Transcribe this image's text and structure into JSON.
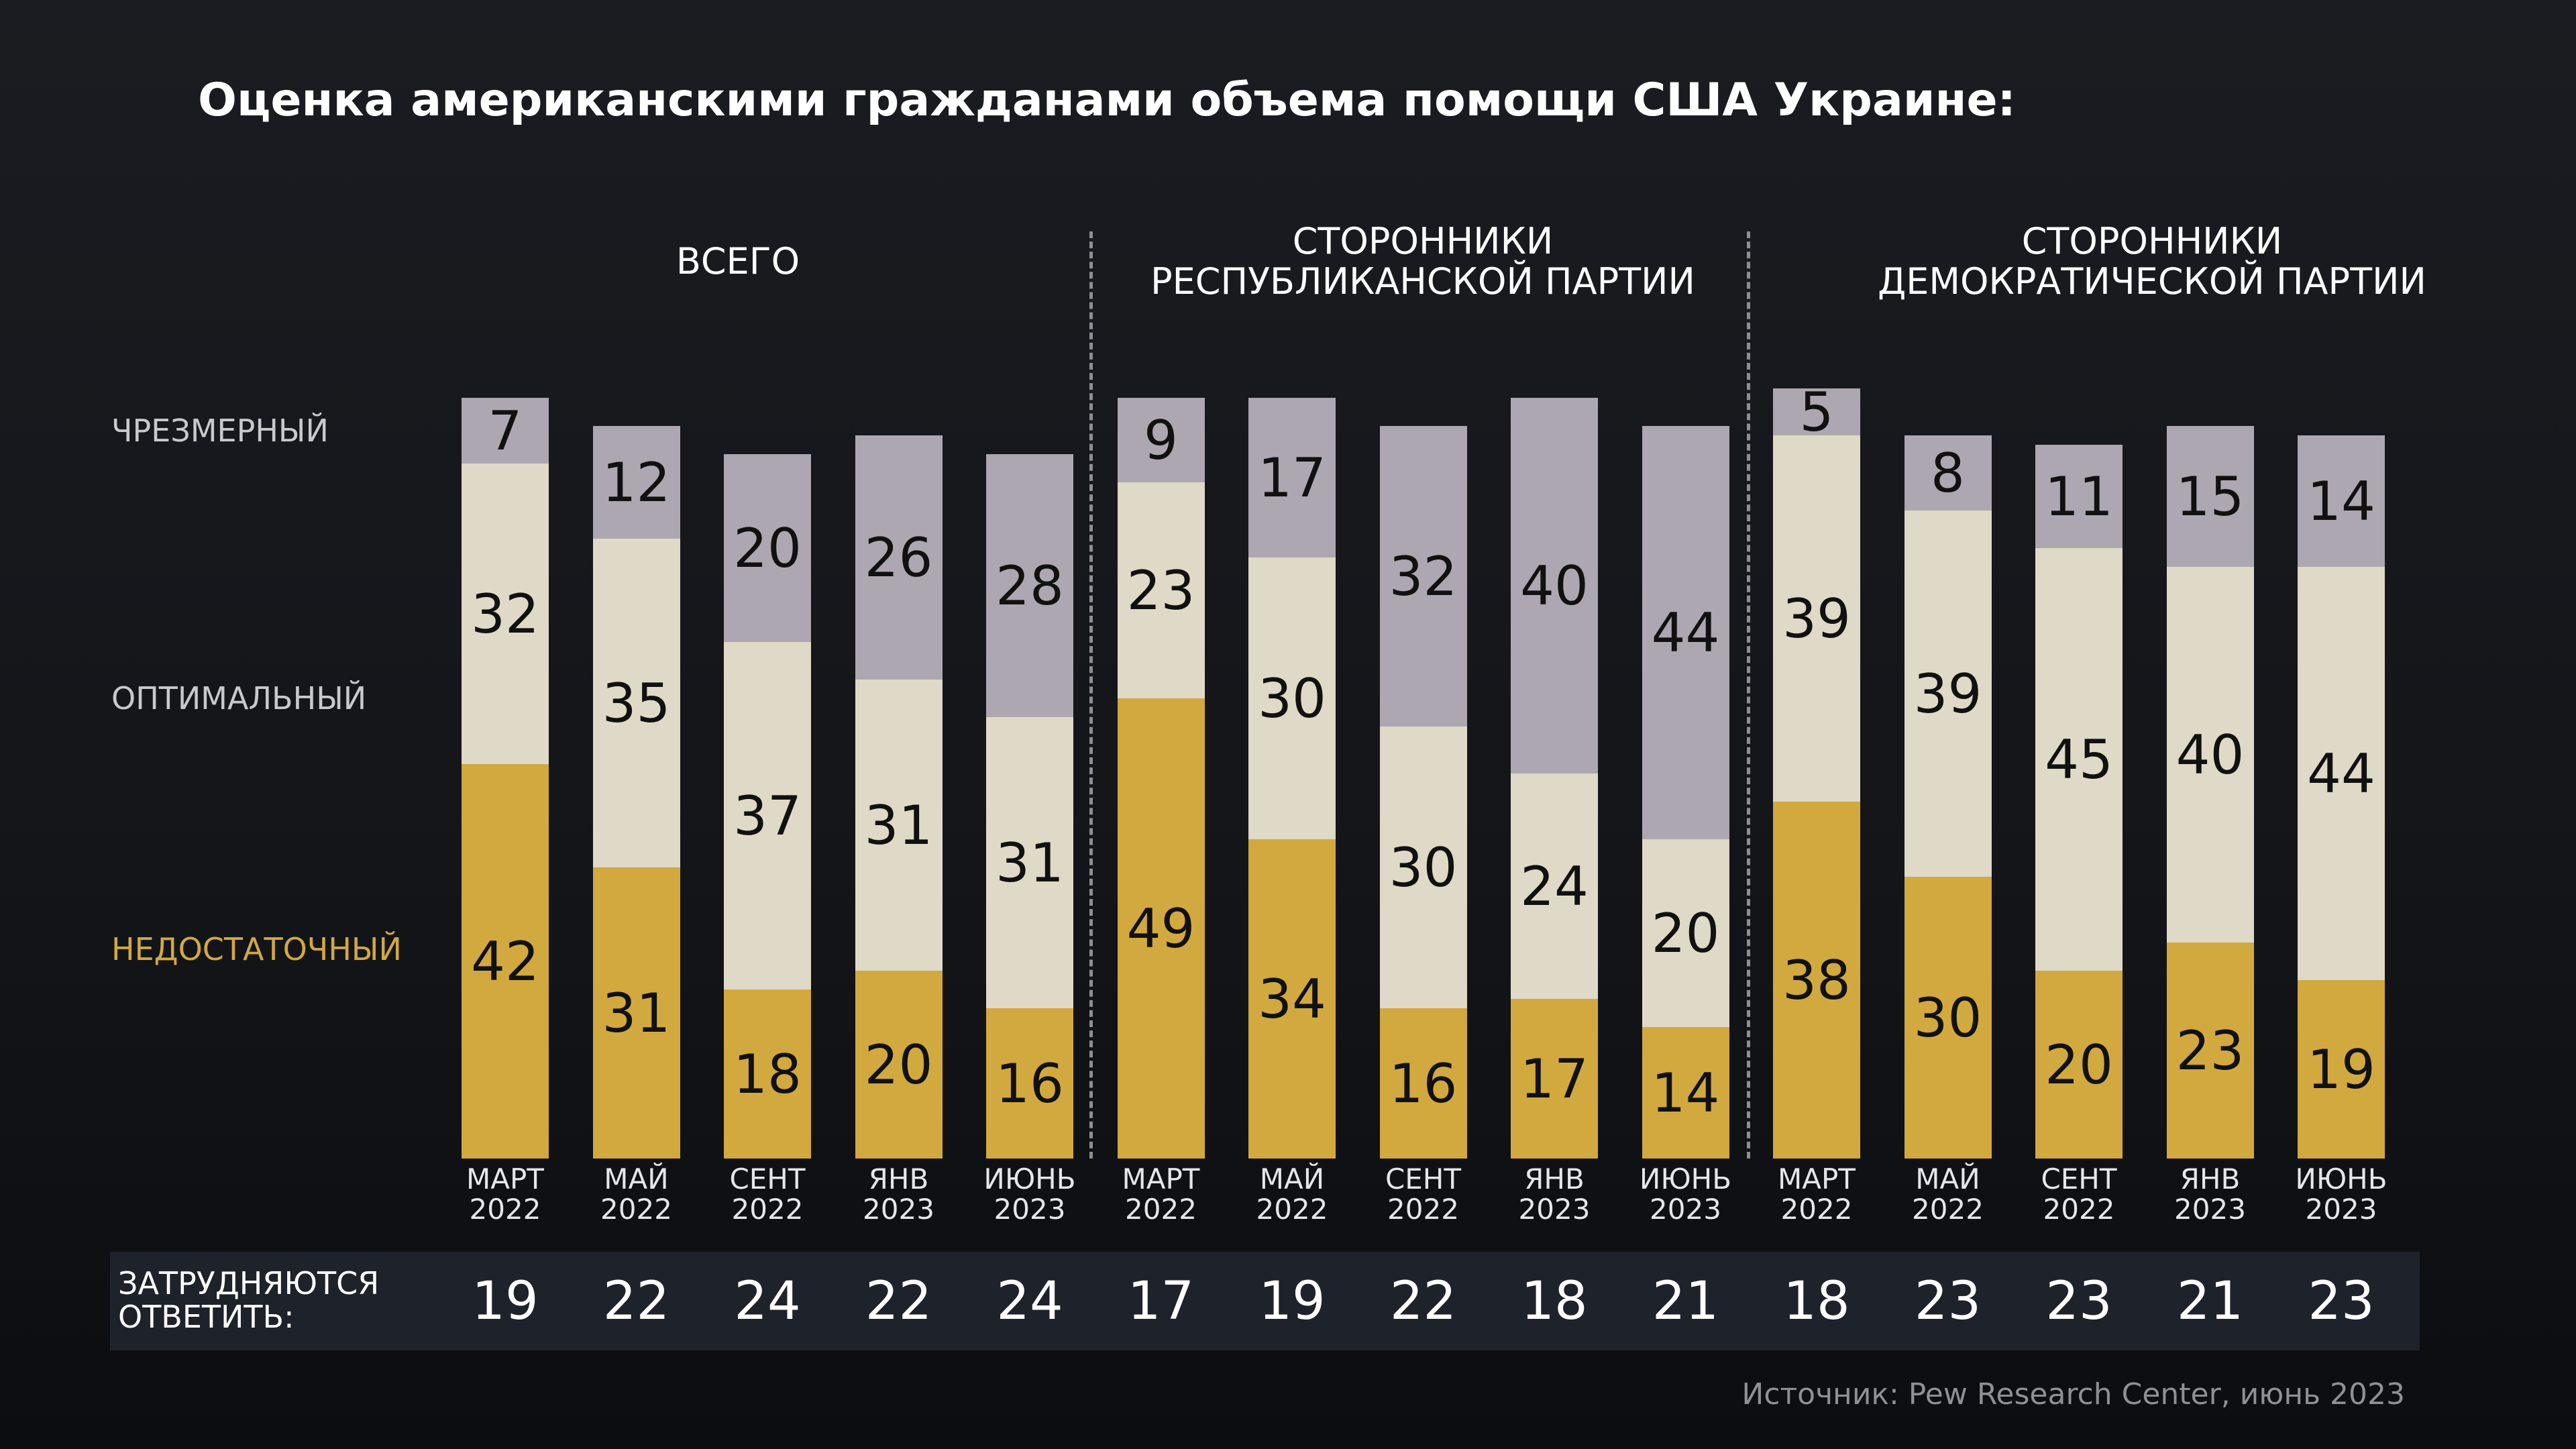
{
  "chart_data": {
    "type": "bar",
    "stacked": true,
    "title": "Оценка американскими гражданами объема помощи США Украине:",
    "groups": [
      {
        "label": [
          "ВСЕГО"
        ],
        "periods": [
          [
            "МАРТ",
            "2022"
          ],
          [
            "МАЙ",
            "2022"
          ],
          [
            "СЕНТ",
            "2022"
          ],
          [
            "ЯНВ",
            "2023"
          ],
          [
            "ИЮНЬ",
            "2023"
          ]
        ],
        "excessive": [
          7,
          12,
          20,
          26,
          28
        ],
        "optimal": [
          32,
          35,
          37,
          31,
          31
        ],
        "insufficient": [
          42,
          31,
          18,
          20,
          16
        ],
        "dont_know": [
          19,
          22,
          24,
          22,
          24
        ]
      },
      {
        "label": [
          "СТОРОННИКИ",
          "РЕСПУБЛИКАНСКОЙ ПАРТИИ"
        ],
        "periods": [
          [
            "МАРТ",
            "2022"
          ],
          [
            "МАЙ",
            "2022"
          ],
          [
            "СЕНТ",
            "2022"
          ],
          [
            "ЯНВ",
            "2023"
          ],
          [
            "ИЮНЬ",
            "2023"
          ]
        ],
        "excessive": [
          9,
          17,
          32,
          40,
          44
        ],
        "optimal": [
          23,
          30,
          30,
          24,
          20
        ],
        "insufficient": [
          49,
          34,
          16,
          17,
          14
        ],
        "dont_know": [
          17,
          19,
          22,
          18,
          21
        ]
      },
      {
        "label": [
          "СТОРОННИКИ",
          "ДЕМОКРАТИЧЕСКОЙ ПАРТИИ"
        ],
        "periods": [
          [
            "МАРТ",
            "2022"
          ],
          [
            "МАЙ",
            "2022"
          ],
          [
            "СЕНТ",
            "2022"
          ],
          [
            "ЯНВ",
            "2023"
          ],
          [
            "ИЮНЬ",
            "2023"
          ]
        ],
        "excessive": [
          5,
          8,
          11,
          15,
          14
        ],
        "optimal": [
          39,
          39,
          45,
          40,
          44
        ],
        "insufficient": [
          38,
          30,
          20,
          23,
          19
        ],
        "dont_know": [
          18,
          23,
          23,
          21,
          23
        ]
      }
    ],
    "series": [
      {
        "name": "ЧРЕЗМЕРНЫЙ",
        "key": "excessive",
        "color": "#aca7b0"
      },
      {
        "name": "ОПТИМАЛЬНЫЙ",
        "key": "optimal",
        "color": "#dfd9c7"
      },
      {
        "name": "НЕДОСТАТОЧНЫЙ",
        "key": "insufficient",
        "color": "#d2a93f"
      }
    ],
    "dont_know_label": [
      "ЗАТРУДНЯЮТСЯ",
      "ОТВЕТИТЬ:"
    ],
    "source": "Источник: Pew Research Center, июнь 2023",
    "legend_placement": "left",
    "grid": false
  }
}
